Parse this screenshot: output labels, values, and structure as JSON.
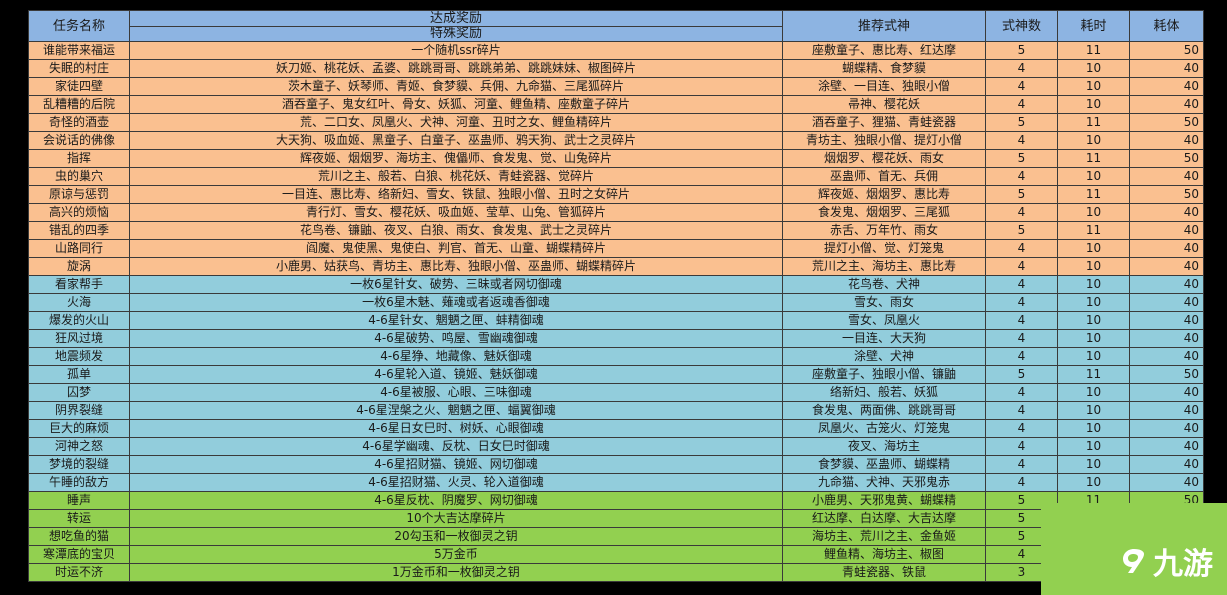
{
  "table": {
    "headers": {
      "name": "任务名称",
      "reward": "达成奖励",
      "special": "特殊奖励",
      "recommend": "推荐式神",
      "count": "式神数",
      "time": "耗时",
      "stamina": "耗体"
    },
    "rows": [
      {
        "group": "orange",
        "name": "谁能带来福运",
        "reward": "一个随机ssr碎片",
        "recommend": "座敷童子、惠比寿、红达摩",
        "count": "5",
        "time": "11",
        "stamina": "50"
      },
      {
        "group": "orange",
        "name": "失眠的村庄",
        "reward": "妖刀姬、桃花妖、孟婆、跳跳哥哥、跳跳弟弟、跳跳妹妹、椒图碎片",
        "recommend": "蝴蝶精、食梦貘",
        "count": "4",
        "time": "10",
        "stamina": "40"
      },
      {
        "group": "orange",
        "name": "家徒四壁",
        "reward": "茨木童子、妖琴师、青姬、食梦貘、兵佣、九命猫、三尾狐碎片",
        "recommend": "涂壁、一目连、独眼小僧",
        "count": "4",
        "time": "10",
        "stamina": "40"
      },
      {
        "group": "orange",
        "name": "乱糟糟的后院",
        "reward": "酒吞童子、鬼女红叶、骨女、妖狐、河童、鲤鱼精、座敷童子碎片",
        "recommend": "帚神、樱花妖",
        "count": "4",
        "time": "10",
        "stamina": "40"
      },
      {
        "group": "orange",
        "name": "奇怪的酒壶",
        "reward": "荒、二口女、凤凰火、犬神、河童、丑时之女、鲤鱼精碎片",
        "recommend": "酒吞童子、狸猫、青蛙瓷器",
        "count": "5",
        "time": "11",
        "stamina": "50"
      },
      {
        "group": "orange",
        "name": "会说话的佛像",
        "reward": "大天狗、吸血姬、黑童子、白童子、巫蛊师、鸦天狗、武士之灵碎片",
        "recommend": "青坊主、独眼小僧、提灯小僧",
        "count": "4",
        "time": "10",
        "stamina": "40"
      },
      {
        "group": "orange",
        "name": "指挥",
        "reward": "辉夜姬、烟烟罗、海坊主、傀儡师、食发鬼、觉、山兔碎片",
        "recommend": "烟烟罗、樱花妖、雨女",
        "count": "5",
        "time": "11",
        "stamina": "50"
      },
      {
        "group": "orange",
        "name": "虫的巢穴",
        "reward": "荒川之主、般若、白狼、桃花妖、青蛙瓷器、觉碎片",
        "recommend": "巫蛊师、首无、兵佣",
        "count": "4",
        "time": "10",
        "stamina": "40"
      },
      {
        "group": "orange",
        "name": "原谅与惩罚",
        "reward": "一目连、惠比寿、络新妇、雪女、铁鼠、独眼小僧、丑时之女碎片",
        "recommend": "辉夜姬、烟烟罗、惠比寿",
        "count": "5",
        "time": "11",
        "stamina": "50"
      },
      {
        "group": "orange",
        "name": "高兴的烦恼",
        "reward": "青行灯、雪女、樱花妖、吸血姬、莹草、山兔、管狐碎片",
        "recommend": "食发鬼、烟烟罗、三尾狐",
        "count": "4",
        "time": "10",
        "stamina": "40"
      },
      {
        "group": "orange",
        "name": "错乱的四季",
        "reward": "花鸟卷、镰鼬、夜叉、白狼、雨女、食发鬼、武士之灵碎片",
        "recommend": "赤舌、万年竹、雨女",
        "count": "5",
        "time": "11",
        "stamina": "40"
      },
      {
        "group": "orange",
        "name": "山路同行",
        "reward": "阎魔、鬼使黑、鬼使白、判官、首无、山童、蝴蝶精碎片",
        "recommend": "提灯小僧、觉、灯笼鬼",
        "count": "4",
        "time": "10",
        "stamina": "40"
      },
      {
        "group": "orange",
        "name": "旋涡",
        "reward": "小鹿男、姑获鸟、青坊主、惠比寿、独眼小僧、巫蛊师、蝴蝶精碎片",
        "recommend": "荒川之主、海坊主、惠比寿",
        "count": "4",
        "time": "10",
        "stamina": "40"
      },
      {
        "group": "blue",
        "name": "看家帮手",
        "reward": "一枚6星针女、破势、三昧或者网切御魂",
        "recommend": "花鸟卷、犬神",
        "count": "4",
        "time": "10",
        "stamina": "40"
      },
      {
        "group": "blue",
        "name": "火海",
        "reward": "一枚6星木魅、薙魂或者返魂香御魂",
        "recommend": "雪女、雨女",
        "count": "4",
        "time": "10",
        "stamina": "40"
      },
      {
        "group": "blue",
        "name": "爆发的火山",
        "reward": "4-6星针女、魍魉之匣、蚌精御魂",
        "recommend": "雪女、凤凰火",
        "count": "4",
        "time": "10",
        "stamina": "40"
      },
      {
        "group": "blue",
        "name": "狂风过境",
        "reward": "4-6星破势、鸣屋、雪幽魂御魂",
        "recommend": "一目连、大天狗",
        "count": "4",
        "time": "10",
        "stamina": "40"
      },
      {
        "group": "blue",
        "name": "地震频发",
        "reward": "4-6星狰、地藏像、魅妖御魂",
        "recommend": "涂壁、犬神",
        "count": "4",
        "time": "10",
        "stamina": "40"
      },
      {
        "group": "blue",
        "name": "孤单",
        "reward": "4-6星轮入道、镜姬、魅妖御魂",
        "recommend": "座敷童子、独眼小僧、镰鼬",
        "count": "5",
        "time": "11",
        "stamina": "50"
      },
      {
        "group": "blue",
        "name": "囚梦",
        "reward": "4-6星被服、心眼、三味御魂",
        "recommend": "络新妇、般若、妖狐",
        "count": "4",
        "time": "10",
        "stamina": "40"
      },
      {
        "group": "blue",
        "name": "阴界裂缝",
        "reward": "4-6星涅槃之火、魍魉之匣、蝠翼御魂",
        "recommend": "食发鬼、两面佛、跳跳哥哥",
        "count": "4",
        "time": "10",
        "stamina": "40"
      },
      {
        "group": "blue",
        "name": "巨大的麻烦",
        "reward": "4-6星日女巳时、树妖、心眼御魂",
        "recommend": "凤凰火、古笼火、灯笼鬼",
        "count": "4",
        "time": "10",
        "stamina": "40"
      },
      {
        "group": "blue",
        "name": "河神之怒",
        "reward": "4-6星学幽魂、反枕、日女巳时御魂",
        "recommend": "夜叉、海坊主",
        "count": "4",
        "time": "10",
        "stamina": "40"
      },
      {
        "group": "blue",
        "name": "梦境的裂缝",
        "reward": "4-6星招财猫、镜姬、网切御魂",
        "recommend": "食梦貘、巫蛊师、蝴蝶精",
        "count": "4",
        "time": "10",
        "stamina": "40"
      },
      {
        "group": "blue",
        "name": "午睡的敌方",
        "reward": "4-6星招财猫、火灵、轮入道御魂",
        "recommend": "九命猫、犬神、天邪鬼赤",
        "count": "4",
        "time": "10",
        "stamina": "40"
      },
      {
        "group": "green",
        "name": "睡声",
        "reward": "4-6星反枕、阴魔罗、网切御魂",
        "recommend": "小鹿男、天邪鬼黄、蝴蝶精",
        "count": "5",
        "time": "11",
        "stamina": "50"
      },
      {
        "group": "green",
        "name": "转运",
        "reward": "10个大吉达摩碎片",
        "recommend": "红达摩、白达摩、大吉达摩",
        "count": "5",
        "time": "",
        "stamina": ""
      },
      {
        "group": "green",
        "name": "想吃鱼的猫",
        "reward": "20勾玉和一枚御灵之钥",
        "recommend": "海坊主、荒川之主、金鱼姬",
        "count": "5",
        "time": "",
        "stamina": ""
      },
      {
        "group": "green",
        "name": "寒潭底的宝贝",
        "reward": "5万金币",
        "recommend": "鲤鱼精、海坊主、椒图",
        "count": "4",
        "time": "",
        "stamina": ""
      },
      {
        "group": "green",
        "name": "时运不济",
        "reward": "1万金币和一枚御灵之钥",
        "recommend": "青蛙瓷器、铁鼠",
        "count": "3",
        "time": "",
        "stamina": ""
      }
    ]
  },
  "watermark": {
    "text": "九游",
    "icon": "nine-game-logo-icon"
  },
  "colors": {
    "header": "#8db4e2",
    "orange": "#fac090",
    "blue": "#92cddc",
    "green": "#92d050"
  }
}
